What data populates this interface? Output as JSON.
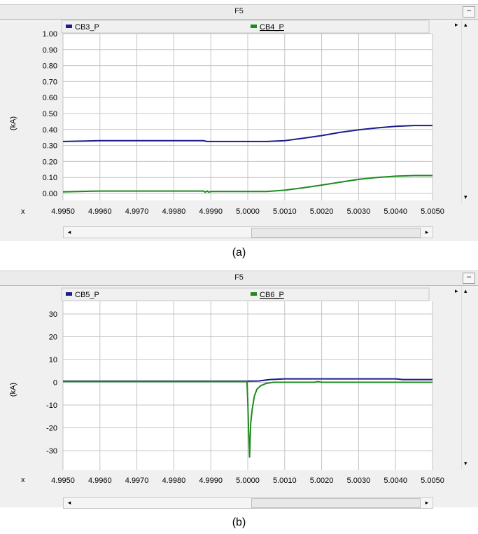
{
  "panels": [
    {
      "title": "F5",
      "minimize_label": "–",
      "caption": "(a)",
      "x_label": "x",
      "y_label": "(kA)"
    },
    {
      "title": "F5",
      "minimize_label": "–",
      "caption": "(b)",
      "x_label": "x",
      "y_label": "(kA)"
    }
  ],
  "colors": {
    "blue": "#1c1c8c",
    "green": "#1e8a1e",
    "grid": "#c4c4c4",
    "plot_bg": "#ffffff"
  },
  "chart_data": [
    {
      "type": "line",
      "ylabel": "(kA)",
      "xlabel": "x",
      "xlim": [
        4.995,
        5.005
      ],
      "ylim": [
        0.0,
        1.0
      ],
      "x_ticks": [
        "4.9950",
        "4.9960",
        "4.9970",
        "4.9980",
        "4.9990",
        "5.0000",
        "5.0010",
        "5.0020",
        "5.0030",
        "5.0040",
        "5.0050"
      ],
      "y_ticks": [
        "1.00",
        "0.90",
        "0.80",
        "0.70",
        "0.60",
        "0.50",
        "0.40",
        "0.30",
        "0.20",
        "0.10",
        "0.00"
      ],
      "series": [
        {
          "name": "CB3_P",
          "color": "#1c1c8c",
          "points": [
            [
              4.995,
              0.325
            ],
            [
              4.996,
              0.33
            ],
            [
              4.997,
              0.33
            ],
            [
              4.998,
              0.33
            ],
            [
              4.9988,
              0.33
            ],
            [
              4.9989,
              0.325
            ],
            [
              4.999,
              0.325
            ],
            [
              5.0,
              0.325
            ],
            [
              5.0005,
              0.325
            ],
            [
              5.001,
              0.33
            ],
            [
              5.0015,
              0.345
            ],
            [
              5.002,
              0.362
            ],
            [
              5.0025,
              0.382
            ],
            [
              5.003,
              0.398
            ],
            [
              5.0035,
              0.41
            ],
            [
              5.004,
              0.42
            ],
            [
              5.0045,
              0.425
            ],
            [
              5.005,
              0.425
            ]
          ]
        },
        {
          "name": "CB4_P",
          "color": "#1e8a1e",
          "points": [
            [
              4.995,
              0.01
            ],
            [
              4.996,
              0.015
            ],
            [
              4.997,
              0.015
            ],
            [
              4.998,
              0.015
            ],
            [
              4.9988,
              0.015
            ],
            [
              4.99885,
              0.008
            ],
            [
              4.9989,
              0.015
            ],
            [
              4.99895,
              0.008
            ],
            [
              4.999,
              0.012
            ],
            [
              5.0,
              0.012
            ],
            [
              5.0005,
              0.012
            ],
            [
              5.001,
              0.02
            ],
            [
              5.0015,
              0.035
            ],
            [
              5.002,
              0.052
            ],
            [
              5.0025,
              0.07
            ],
            [
              5.003,
              0.088
            ],
            [
              5.0035,
              0.1
            ],
            [
              5.004,
              0.108
            ],
            [
              5.0045,
              0.112
            ],
            [
              5.005,
              0.112
            ]
          ]
        }
      ]
    },
    {
      "type": "line",
      "ylabel": "(kA)",
      "xlabel": "x",
      "xlim": [
        4.995,
        5.005
      ],
      "ylim": [
        -36,
        36
      ],
      "x_ticks": [
        "4.9950",
        "4.9960",
        "4.9970",
        "4.9980",
        "4.9990",
        "5.0000",
        "5.0010",
        "5.0020",
        "5.0030",
        "5.0040",
        "5.0050"
      ],
      "y_ticks": [
        "30",
        "20",
        "10",
        "0",
        "-10",
        "-20",
        "-30"
      ],
      "series": [
        {
          "name": "CB5_P",
          "color": "#1c1c8c",
          "points": [
            [
              4.995,
              0.5
            ],
            [
              4.999,
              0.5
            ],
            [
              5.0,
              0.5
            ],
            [
              5.0003,
              0.6
            ],
            [
              5.0006,
              1.2
            ],
            [
              5.001,
              1.5
            ],
            [
              5.002,
              1.5
            ],
            [
              5.003,
              1.5
            ],
            [
              5.004,
              1.5
            ],
            [
              5.0042,
              1.2
            ],
            [
              5.005,
              1.2
            ]
          ]
        },
        {
          "name": "CB6_P",
          "color": "#1e8a1e",
          "points": [
            [
              4.995,
              0.3
            ],
            [
              4.999,
              0.3
            ],
            [
              4.99998,
              0.3
            ],
            [
              5.0,
              -8
            ],
            [
              5.00002,
              -20
            ],
            [
              5.00005,
              -33
            ],
            [
              5.00008,
              -18
            ],
            [
              5.00012,
              -12
            ],
            [
              5.00018,
              -6
            ],
            [
              5.00025,
              -3
            ],
            [
              5.00035,
              -1.5
            ],
            [
              5.0005,
              -0.5
            ],
            [
              5.0007,
              0
            ],
            [
              5.001,
              0
            ],
            [
              5.0018,
              0
            ],
            [
              5.0019,
              0.3
            ],
            [
              5.002,
              0
            ],
            [
              5.005,
              0
            ]
          ]
        }
      ]
    }
  ]
}
